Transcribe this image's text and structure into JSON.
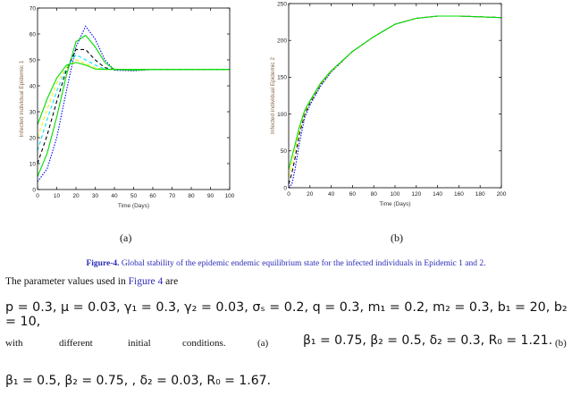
{
  "chart_data": [
    {
      "type": "line",
      "xlabel": "Time (Days)",
      "ylabel": "Infected individual Epidemic 1",
      "xlim": [
        0,
        100
      ],
      "ylim": [
        0,
        70
      ],
      "xticks": [
        0,
        10,
        20,
        30,
        40,
        50,
        60,
        70,
        80,
        90,
        100
      ],
      "yticks": [
        0,
        10,
        20,
        30,
        40,
        50,
        60,
        70
      ],
      "grid": false,
      "x": [
        0,
        5,
        10,
        15,
        20,
        25,
        30,
        35,
        40,
        50,
        60,
        80,
        100
      ],
      "series": [
        {
          "color": "#0000ff",
          "style": "dotted",
          "values": [
            3,
            8,
            20,
            38,
            55,
            63,
            58,
            50,
            46,
            45.8,
            46.3,
            46.3,
            46.3
          ]
        },
        {
          "color": "#00dd00",
          "style": "solid",
          "values": [
            5,
            14,
            28,
            44,
            57,
            59.5,
            55,
            49,
            46.3,
            46,
            46.3,
            46.3,
            46.3
          ]
        },
        {
          "color": "#000000",
          "style": "dashed",
          "values": [
            10,
            21,
            34,
            46,
            54,
            54,
            50,
            47,
            46.3,
            46.2,
            46.3,
            46.3,
            46.3
          ]
        },
        {
          "color": "#00e5ff",
          "style": "dashed",
          "values": [
            15,
            27,
            38,
            47,
            52,
            50,
            48,
            46.5,
            46.3,
            46.3,
            46.3,
            46.3,
            46.3
          ]
        },
        {
          "color": "#ffee00",
          "style": "dashed",
          "values": [
            20,
            31,
            41,
            47,
            50,
            48.5,
            47,
            46.3,
            46.3,
            46.3,
            46.3,
            46.3,
            46.3
          ]
        },
        {
          "color": "#00dd00",
          "style": "solid",
          "values": [
            25,
            35,
            43,
            48,
            49,
            48,
            46.5,
            46.3,
            46.3,
            46.3,
            46.3,
            46.3,
            46.3
          ]
        }
      ]
    },
    {
      "type": "line",
      "xlabel": "Time (Days)",
      "ylabel": "Infected individual Epidemic 2",
      "xlim": [
        0,
        200
      ],
      "ylim": [
        0,
        250
      ],
      "xticks": [
        0,
        20,
        40,
        60,
        80,
        100,
        120,
        140,
        160,
        180,
        200
      ],
      "yticks": [
        0,
        50,
        100,
        150,
        200,
        250
      ],
      "grid": false,
      "x": [
        0,
        3,
        6,
        10,
        15,
        20,
        30,
        40,
        60,
        80,
        100,
        120,
        140,
        160,
        200
      ],
      "series": [
        {
          "color": "#0000ff",
          "style": "dotted",
          "values": [
            0,
            5,
            25,
            60,
            95,
            112,
            138,
            157,
            185,
            205,
            222,
            230,
            233,
            233,
            231
          ]
        },
        {
          "color": "#000000",
          "style": "dashed",
          "values": [
            5,
            20,
            40,
            72,
            100,
            115,
            140,
            158,
            185,
            205,
            222,
            230,
            233,
            233,
            231
          ]
        },
        {
          "color": "#ffee00",
          "style": "dashed",
          "values": [
            15,
            32,
            50,
            78,
            103,
            117,
            141,
            158,
            185,
            205,
            222,
            230,
            233,
            233,
            231
          ]
        },
        {
          "color": "#00dd00",
          "style": "solid",
          "values": [
            25,
            42,
            58,
            82,
            105,
            118,
            142,
            159,
            185,
            205,
            222,
            230,
            233,
            233,
            231
          ]
        }
      ]
    }
  ],
  "panels": {
    "a": "(a)",
    "b": "(b)"
  },
  "caption": {
    "label": "Figure-4.",
    "text": " Global stability of the epidemic endemic equilibrium state for the infected individuals in Epidemic 1 and 2."
  },
  "body": {
    "intro_pre": "The parameter values used in ",
    "intro_link": "Figure 4",
    "intro_post": " are",
    "params": "p = 0.3, μ = 0.03, γ₁ = 0.3, γ₂ = 0.03, σₛ = 0.2, q = 0.3, m₁ = 0.2, m₂ = 0.3, b₁ = 20, b₂ = 10,",
    "with": "with",
    "different": "different",
    "initial": "initial",
    "conditions": "conditions.",
    "a_label": "(a)",
    "a_params": "β₁ = 0.75, β₂ = 0.5, δ₂ = 0.3, R₀ = 1.21.",
    "b_label": "(b)",
    "b_params": "β₁ = 0.5, β₂ = 0.75, , δ₂ = 0.03, R₀ = 1.67."
  }
}
